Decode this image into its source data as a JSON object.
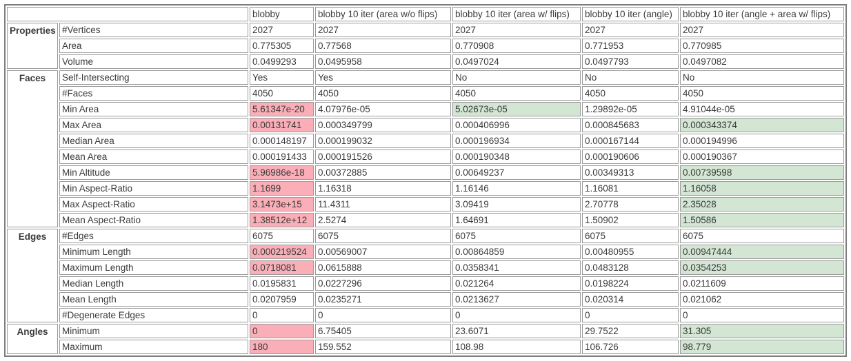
{
  "colors": {
    "highlight_bad": "#faafb8",
    "highlight_good": "#d3e5d3",
    "border_outer": "#7e7e7e",
    "border_cell": "#9a9a9a"
  },
  "chart_data": {
    "type": "table",
    "corner_label": "",
    "columns": [
      "blobby",
      "blobby 10 iter (area w/o flips)",
      "blobby 10 iter (area w/ flips)",
      "blobby 10 iter (angle)",
      "blobby 10 iter (angle + area w/ flips)"
    ],
    "groups": [
      {
        "label": "Properties",
        "rows": [
          {
            "property": "#Vertices",
            "values": [
              "2027",
              "2027",
              "2027",
              "2027",
              "2027"
            ],
            "highlights": [
              null,
              null,
              null,
              null,
              null
            ]
          },
          {
            "property": "Area",
            "values": [
              "0.775305",
              "0.77568",
              "0.770908",
              "0.771953",
              "0.770985"
            ],
            "highlights": [
              null,
              null,
              null,
              null,
              null
            ]
          },
          {
            "property": "Volume",
            "values": [
              "0.0499293",
              "0.0495958",
              "0.0497024",
              "0.0497793",
              "0.0497082"
            ],
            "highlights": [
              null,
              null,
              null,
              null,
              null
            ]
          }
        ]
      },
      {
        "label": "Faces",
        "rows": [
          {
            "property": "Self-Intersecting",
            "values": [
              "Yes",
              "Yes",
              "No",
              "No",
              "No"
            ],
            "highlights": [
              null,
              null,
              null,
              null,
              null
            ]
          },
          {
            "property": "#Faces",
            "values": [
              "4050",
              "4050",
              "4050",
              "4050",
              "4050"
            ],
            "highlights": [
              null,
              null,
              null,
              null,
              null
            ]
          },
          {
            "property": "Min Area",
            "values": [
              "5.61347e-20",
              "4.07976e-05",
              "5.02673e-05",
              "1.29892e-05",
              "4.91044e-05"
            ],
            "highlights": [
              "red",
              null,
              "green",
              null,
              null
            ]
          },
          {
            "property": "Max Area",
            "values": [
              "0.00131741",
              "0.000349799",
              "0.000406996",
              "0.000845683",
              "0.000343374"
            ],
            "highlights": [
              "red",
              null,
              null,
              null,
              "green"
            ]
          },
          {
            "property": "Median Area",
            "values": [
              "0.000148197",
              "0.000199032",
              "0.000196934",
              "0.000167144",
              "0.000194996"
            ],
            "highlights": [
              null,
              null,
              null,
              null,
              null
            ]
          },
          {
            "property": "Mean Area",
            "values": [
              "0.000191433",
              "0.000191526",
              "0.000190348",
              "0.000190606",
              "0.000190367"
            ],
            "highlights": [
              null,
              null,
              null,
              null,
              null
            ]
          },
          {
            "property": "Min Altitude",
            "values": [
              "5.96986e-18",
              "0.00372885",
              "0.00649237",
              "0.00349313",
              "0.00739598"
            ],
            "highlights": [
              "red",
              null,
              null,
              null,
              "green"
            ]
          },
          {
            "property": "Min Aspect-Ratio",
            "values": [
              "1.1699",
              "1.16318",
              "1.16146",
              "1.16081",
              "1.16058"
            ],
            "highlights": [
              "red",
              null,
              null,
              null,
              "green"
            ]
          },
          {
            "property": "Max Aspect-Ratio",
            "values": [
              "3.1473e+15",
              "11.4311",
              "3.09419",
              "2.70778",
              "2.35028"
            ],
            "highlights": [
              "red",
              null,
              null,
              null,
              "green"
            ]
          },
          {
            "property": "Mean Aspect-Ratio",
            "values": [
              "1.38512e+12",
              "2.5274",
              "1.64691",
              "1.50902",
              "1.50586"
            ],
            "highlights": [
              "red",
              null,
              null,
              null,
              "green"
            ]
          }
        ]
      },
      {
        "label": "Edges",
        "rows": [
          {
            "property": "#Edges",
            "values": [
              "6075",
              "6075",
              "6075",
              "6075",
              "6075"
            ],
            "highlights": [
              null,
              null,
              null,
              null,
              null
            ]
          },
          {
            "property": "Minimum Length",
            "values": [
              "0.000219524",
              "0.00569007",
              "0.00864859",
              "0.00480955",
              "0.00947444"
            ],
            "highlights": [
              "red",
              null,
              null,
              null,
              "green"
            ]
          },
          {
            "property": "Maximum Length",
            "values": [
              "0.0718081",
              "0.0615888",
              "0.0358341",
              "0.0483128",
              "0.0354253"
            ],
            "highlights": [
              "red",
              null,
              null,
              null,
              "green"
            ]
          },
          {
            "property": "Median Length",
            "values": [
              "0.0195831",
              "0.0227296",
              "0.021264",
              "0.0198224",
              "0.0211609"
            ],
            "highlights": [
              null,
              null,
              null,
              null,
              null
            ]
          },
          {
            "property": "Mean Length",
            "values": [
              "0.0207959",
              "0.0235271",
              "0.0213627",
              "0.020314",
              "0.021062"
            ],
            "highlights": [
              null,
              null,
              null,
              null,
              null
            ]
          },
          {
            "property": "#Degenerate Edges",
            "values": [
              "0",
              "0",
              "0",
              "0",
              "0"
            ],
            "highlights": [
              null,
              null,
              null,
              null,
              null
            ]
          }
        ]
      },
      {
        "label": "Angles",
        "rows": [
          {
            "property": "Minimum",
            "values": [
              "0",
              "6.75405",
              "23.6071",
              "29.7522",
              "31.305"
            ],
            "highlights": [
              "red",
              null,
              null,
              null,
              "green"
            ]
          },
          {
            "property": "Maximum",
            "values": [
              "180",
              "159.552",
              "108.98",
              "106.726",
              "98.779"
            ],
            "highlights": [
              "red",
              null,
              null,
              null,
              "green"
            ]
          }
        ]
      }
    ]
  }
}
